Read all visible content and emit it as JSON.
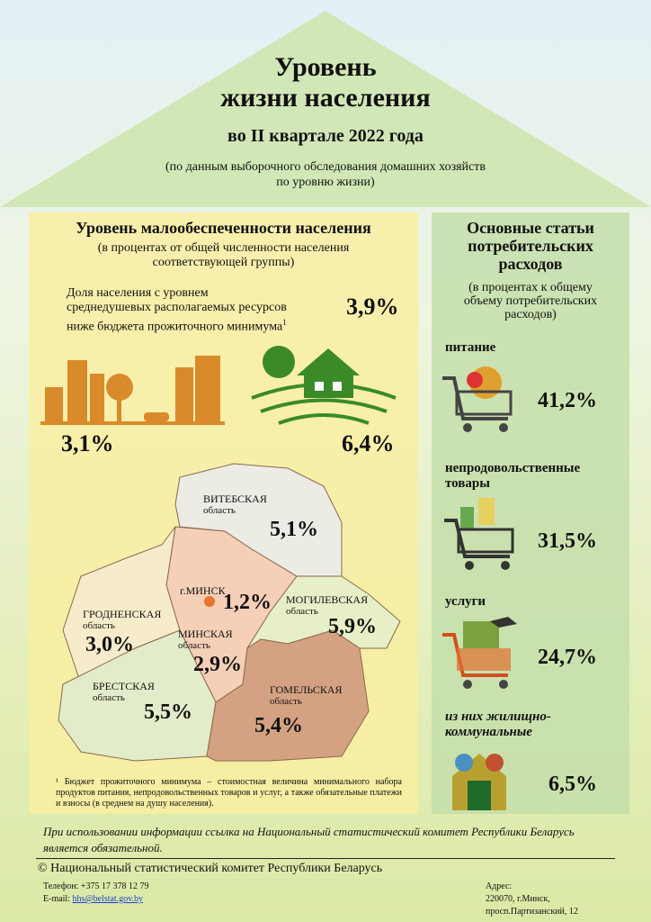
{
  "header": {
    "title_line1": "Уровень",
    "title_line2": "жизни населения",
    "subtitle": "во II квартале 2022 года",
    "source_note_line1": "(по данным выборочного обследования домашних хозяйств",
    "source_note_line2": "по уровню жизни)"
  },
  "left": {
    "title": "Уровень малообеспеченности населения",
    "subtitle_line1": "(в процентах от общей численности населения",
    "subtitle_line2": "соответствующей группы)",
    "share_line1": "Доля населения с уровнем",
    "share_line2": "среднедушевых располагаемых ресурсов",
    "share_line3": "ниже бюджета прожиточного минимума",
    "share_sup": "1",
    "share_value": "3,9%",
    "urban_value": "3,1%",
    "rural_value": "6,4%",
    "regions": [
      {
        "name": "ВИТЕБСКАЯ",
        "sub": "область",
        "value": "5,1%",
        "color": "#ecebe4"
      },
      {
        "name": "г.МИНСК",
        "sub": "",
        "value": "1,2%",
        "color": "#e8732a"
      },
      {
        "name": "МОГИЛЕВСКАЯ",
        "sub": "область",
        "value": "5,9%",
        "color": "#e6efc6"
      },
      {
        "name": "ГРОДНЕНСКАЯ",
        "sub": "область",
        "value": "3,0%",
        "color": "#f6eccb"
      },
      {
        "name": "МИНСКАЯ",
        "sub": "область",
        "value": "2,9%",
        "color": "#f5cfb6"
      },
      {
        "name": "БРЕСТСКАЯ",
        "sub": "область",
        "value": "5,5%",
        "color": "#e3ecca"
      },
      {
        "name": "ГОМЕЛЬСКАЯ",
        "sub": "область",
        "value": "5,4%",
        "color": "#d4a283"
      }
    ],
    "footnote": "¹ Бюджет прожиточного минимума – стоимостная величина минимального набора продуктов питания, непродовольственных товаров и услуг, а также обязательные платежи и взносы (в среднем на душу населения)."
  },
  "right": {
    "title_line1": "Основные статьи",
    "title_line2": "потребительских",
    "title_line3": "расходов",
    "subtitle_line1": "(в процентах к общему",
    "subtitle_line2": "объему потребительских",
    "subtitle_line3": "расходов)",
    "items": [
      {
        "label": "питание",
        "value": "41,2%"
      },
      {
        "label": "непродовольственные товары",
        "value": "31,5%"
      },
      {
        "label": "услуги",
        "value": "24,7%"
      },
      {
        "label": "из них жилищно-коммунальные",
        "value": "6,5%"
      }
    ]
  },
  "footer": {
    "citation_line1": "При использовании информации ссылка на Национальный статистический комитет Республики Беларусь",
    "citation_line2": "является обязательной.",
    "copyright": "© Национальный статистический комитет Республики Беларусь",
    "phone": "Телефон: +375 17 378 12 79",
    "email_label": "E-mail: ",
    "email": "hhs@belstat.gov.by",
    "address_line1": "Адрес:",
    "address_line2": "220070, г.Минск,",
    "address_line3": "просп.Партизанский, 12"
  },
  "colors": {
    "roof": "#c9e3a8",
    "left_panel": "#faeea0",
    "right_panel": "#c4deaa",
    "orange": "#d98a2b",
    "green": "#3a8a2a"
  }
}
